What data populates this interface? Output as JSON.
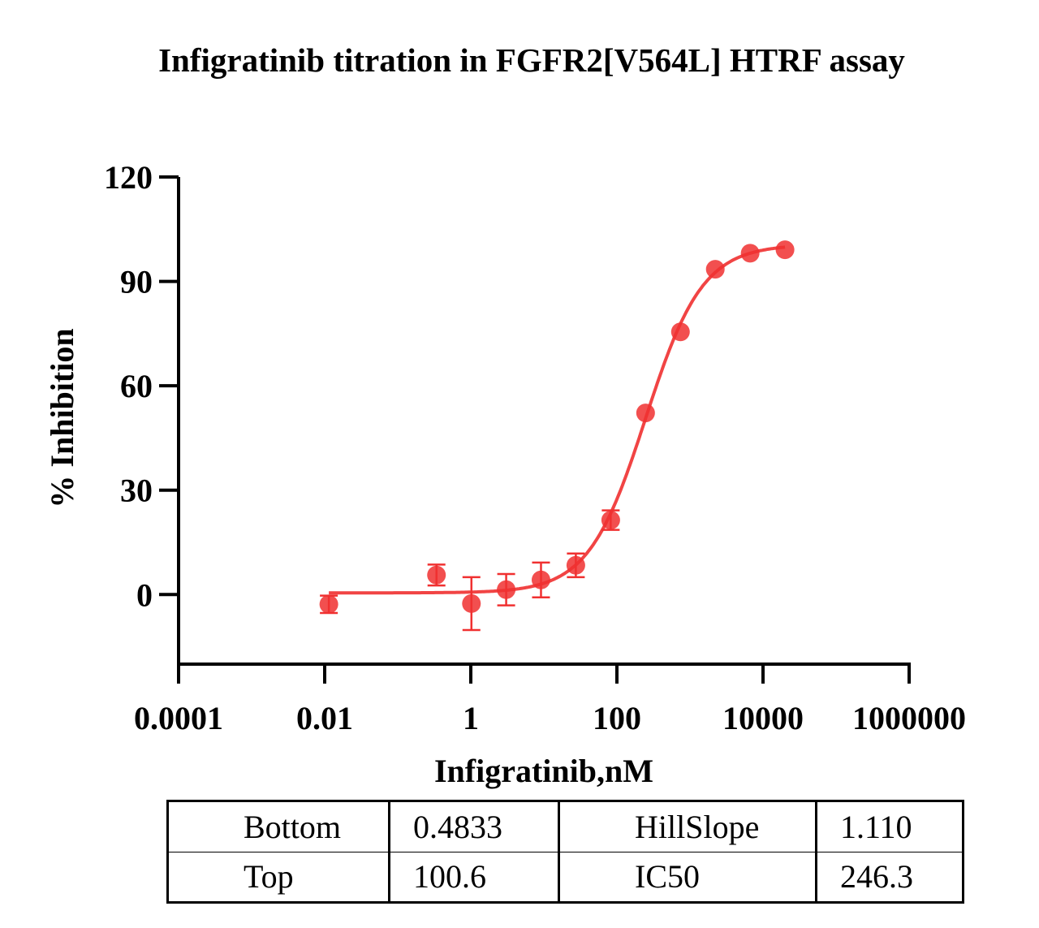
{
  "chart_data": {
    "type": "scatter",
    "title": "Infigratinib titration in FGFR2[V564L] HTRF assay",
    "xlabel": "Infigratinib,nM",
    "ylabel": "% Inhibition",
    "xscale": "log",
    "xlim": [
      0.0001,
      1000000
    ],
    "ylim": [
      -20,
      120
    ],
    "xticks": [
      "0.0001",
      "0.01",
      "1",
      "100",
      "10000",
      "1000000"
    ],
    "xtick_values": [
      0.0001,
      0.01,
      1,
      100,
      10000,
      1000000
    ],
    "yticks": [
      "0",
      "30",
      "60",
      "90",
      "120"
    ],
    "ytick_values": [
      0,
      30,
      60,
      90,
      120
    ],
    "color": "#f03030",
    "series": [
      {
        "name": "Infigratinib",
        "x": [
          0.0114,
          0.339,
          1.02,
          3.05,
          9.14,
          27.4,
          82.3,
          247,
          741,
          2222,
          6667,
          20000
        ],
        "y": [
          -2.8,
          5.6,
          -2.6,
          1.4,
          4.2,
          8.4,
          21.4,
          52.2,
          75.5,
          93.5,
          98.1,
          99.1
        ],
        "err": [
          2.5,
          3.0,
          7.6,
          4.5,
          5.0,
          3.4,
          2.8,
          0,
          0,
          0,
          0,
          0
        ]
      }
    ],
    "fit": {
      "model": "4PL",
      "bottom": 0.4833,
      "top": 100.6,
      "hillslope": 1.11,
      "ic50": 246.3
    },
    "table": [
      [
        "Bottom",
        "0.4833",
        "HillSlope",
        "1.110"
      ],
      [
        "Top",
        "100.6",
        "IC50",
        "246.3"
      ]
    ]
  }
}
